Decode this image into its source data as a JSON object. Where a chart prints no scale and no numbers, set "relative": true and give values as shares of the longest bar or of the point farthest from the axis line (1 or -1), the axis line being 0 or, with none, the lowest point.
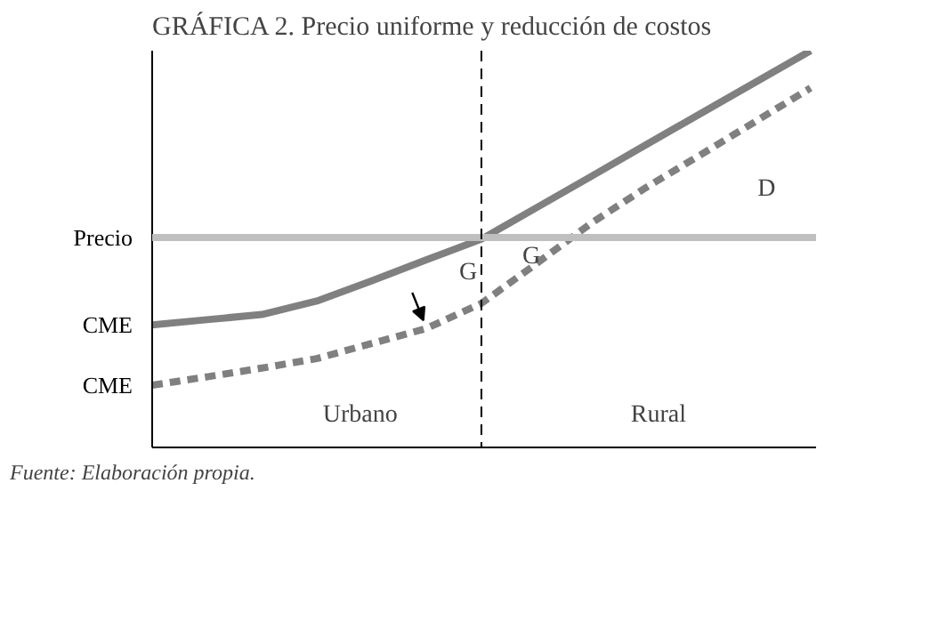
{
  "chart_data": {
    "type": "line",
    "title": "GRÁFICA 2. Precio uniforme y reducción de costos",
    "relative": true,
    "grid": false,
    "categories": [
      null,
      null,
      null,
      null,
      null,
      null,
      null,
      null,
      null,
      null,
      null,
      null,
      null
    ],
    "series": [
      {
        "name": "CME",
        "color": "#808080",
        "line_style": "solid",
        "values": [
          0.309,
          0.322,
          0.335,
          0.369,
          0.42,
          0.473,
          0.525,
          0.604,
          0.683,
          0.763,
          0.842,
          0.921,
          1.0
        ]
      },
      {
        "name": "CME",
        "color": "#808080",
        "line_style": "dashed",
        "values": [
          0.157,
          0.178,
          0.2,
          0.224,
          0.262,
          0.3,
          0.363,
          0.463,
          0.565,
          0.655,
          0.738,
          0.822,
          0.906
        ]
      }
    ],
    "ref_lines": [
      {
        "axis": "y",
        "value": 0.529,
        "label": "Precio",
        "color": "#bfbfbf",
        "line_style": "solid"
      }
    ],
    "annotations": [
      "G",
      "G",
      "D",
      "Urbano",
      "Rural",
      "Fuente: Elaboración propia."
    ]
  }
}
